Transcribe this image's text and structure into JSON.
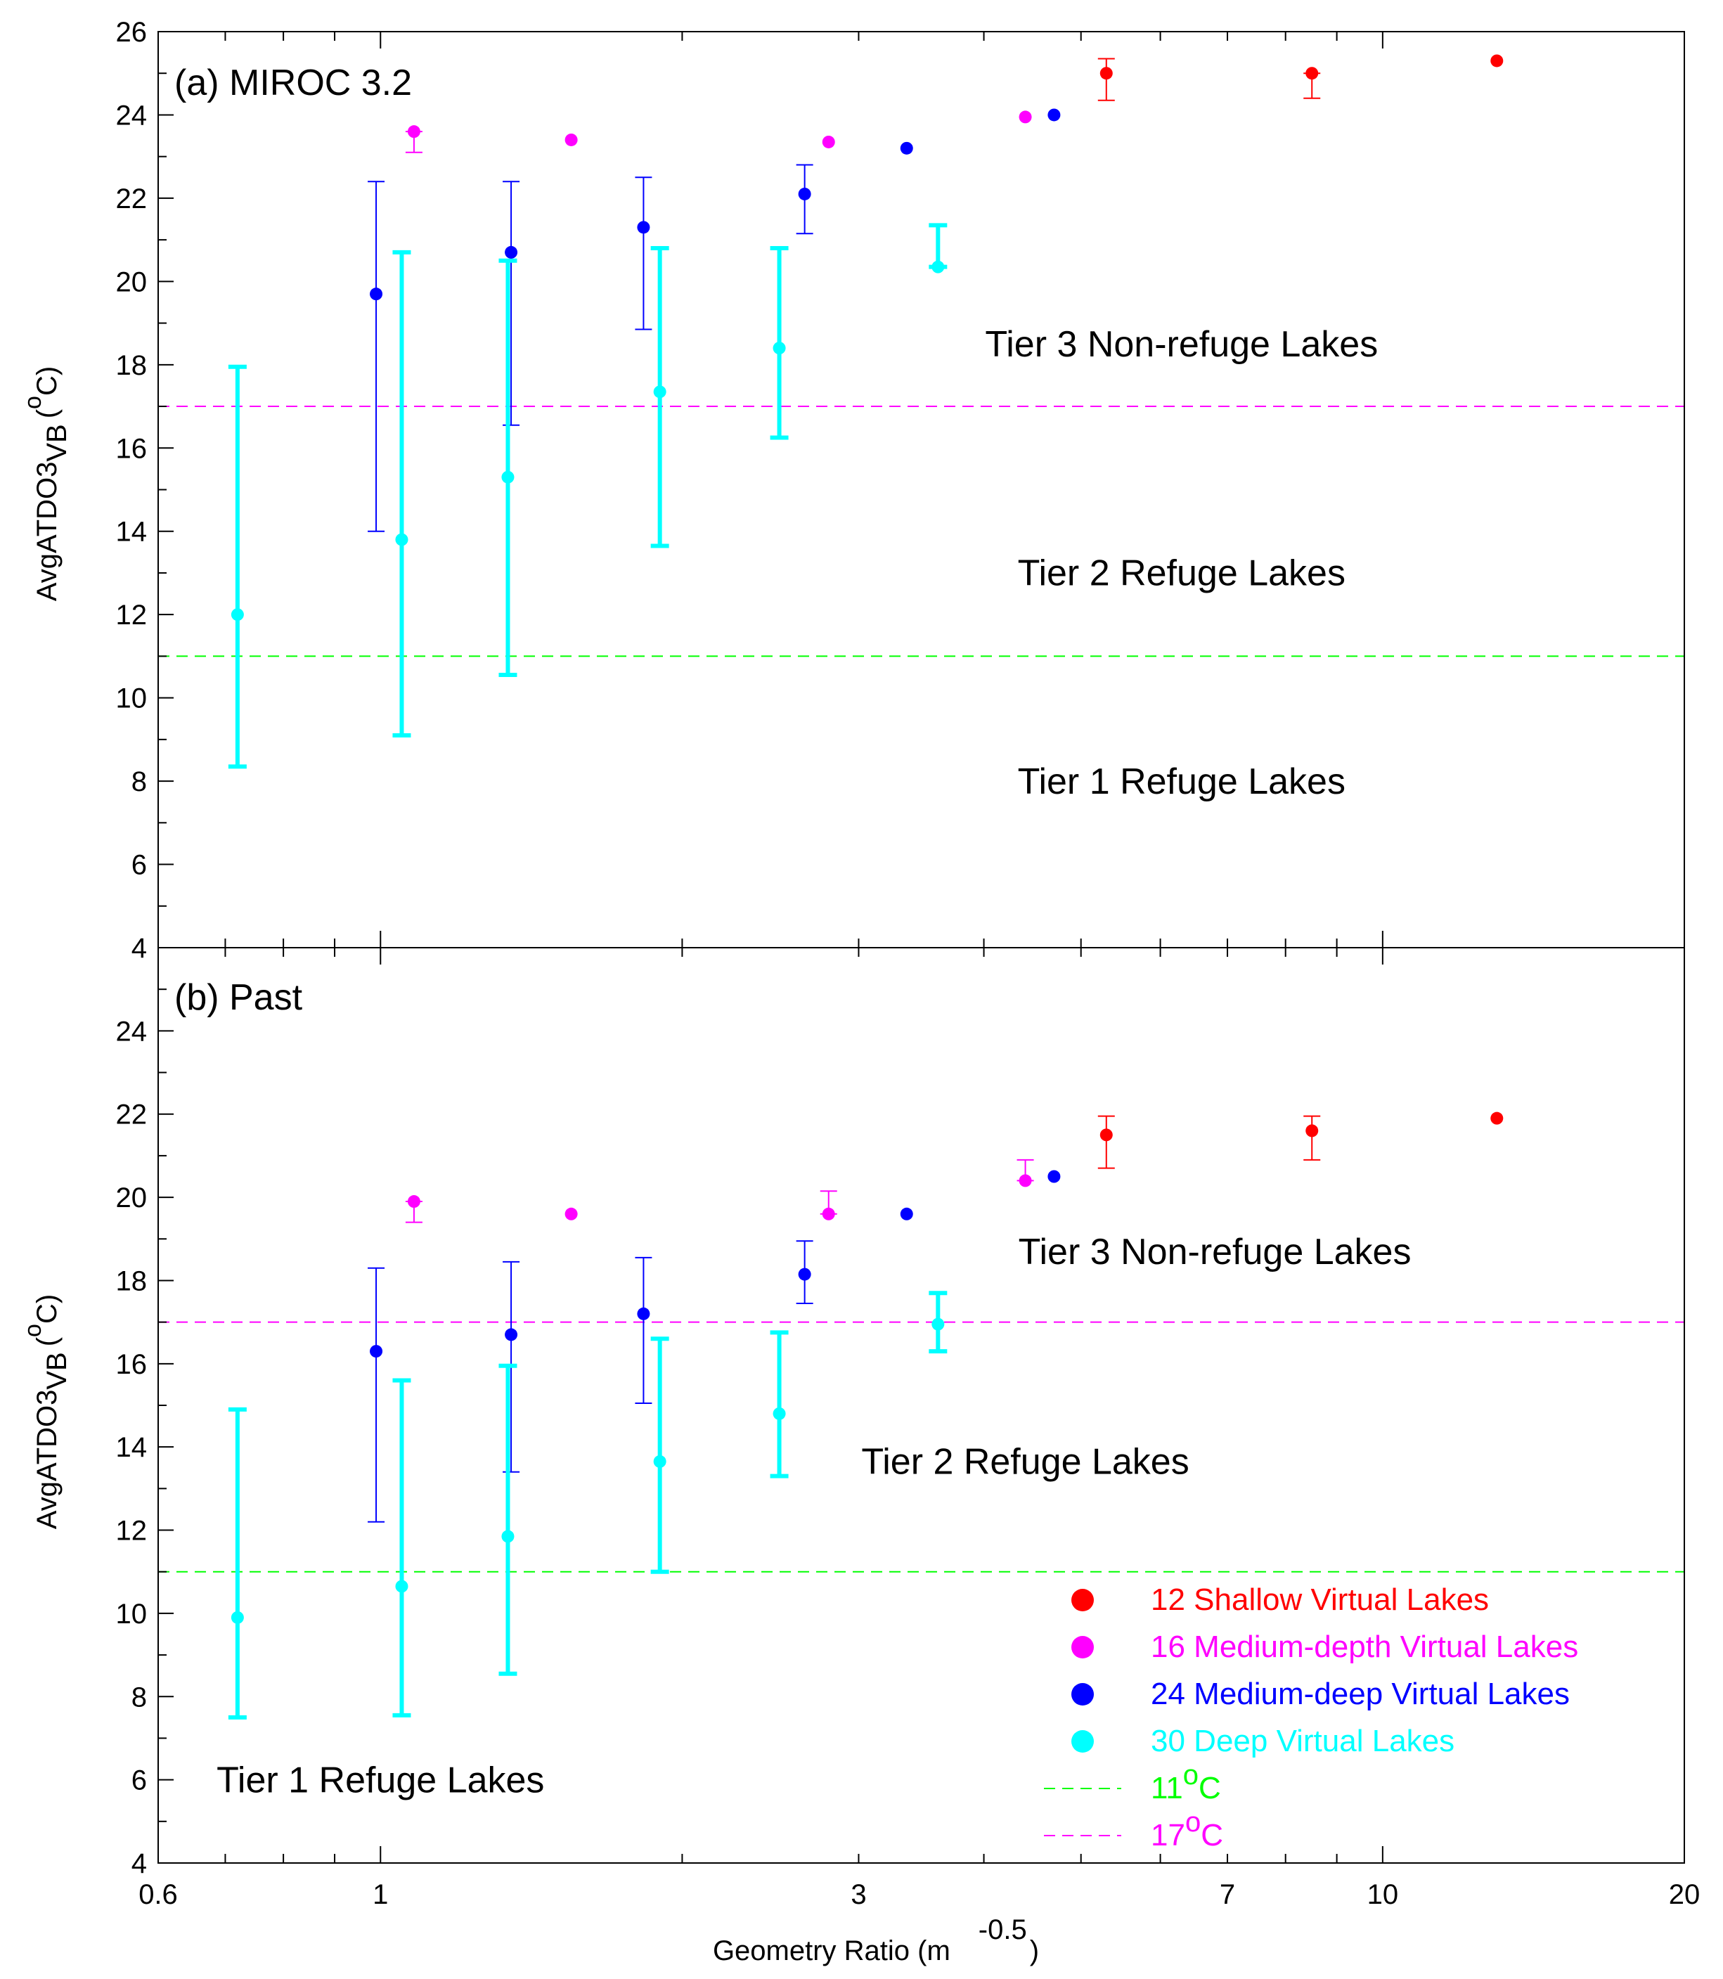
{
  "colors": {
    "shallow": "#ff0000",
    "medium_depth": "#ff00ff",
    "medium_deep": "#0000ff",
    "deep": "#00ffff",
    "line_11": "#00ff00",
    "line_17": "#ff00ff",
    "axis": "#000000"
  },
  "chart_data": [
    {
      "type": "scatter",
      "panel_label": "(a) MIROC 3.2",
      "xscale": "log",
      "xlim": [
        0.6,
        20
      ],
      "ylim": [
        4,
        26
      ],
      "y_ticks": [
        4,
        6,
        8,
        10,
        12,
        14,
        16,
        18,
        20,
        22,
        24,
        26
      ],
      "ylabel": "AvgATDO3",
      "ylabel_sub": "VB",
      "ylabel_paren_open": "(",
      "ylabel_sup": "o",
      "ylabel_unit": "C)",
      "threshold_lines": [
        {
          "name": "11oC",
          "y": 11,
          "color_key": "line_11"
        },
        {
          "name": "17oC",
          "y": 17,
          "color_key": "line_17"
        }
      ],
      "region_labels": [
        {
          "text": "Tier 3 Non-refuge Lakes",
          "x": 6.3,
          "y": 18.2
        },
        {
          "text": "Tier 2 Refuge Lakes",
          "x": 6.3,
          "y": 12.7
        },
        {
          "text": "Tier 1 Refuge Lakes",
          "x": 6.3,
          "y": 7.7
        }
      ],
      "series": [
        {
          "name": "12 Shallow Virtual Lakes",
          "color_key": "shallow",
          "width": 2,
          "points": [
            {
              "x": 5.3,
              "y": 25.0,
              "low": 24.35,
              "high": 25.35
            },
            {
              "x": 8.5,
              "y": 25.0,
              "low": 24.4,
              "high": 25.0
            },
            {
              "x": 13.0,
              "y": 25.3,
              "low": 25.3,
              "high": 25.3
            }
          ]
        },
        {
          "name": "16 Medium-depth Virtual Lakes",
          "color_key": "medium_depth",
          "width": 2,
          "points": [
            {
              "x": 1.08,
              "y": 23.6,
              "low": 23.1,
              "high": 23.6
            },
            {
              "x": 1.55,
              "y": 23.4,
              "low": 23.4,
              "high": 23.4
            },
            {
              "x": 2.8,
              "y": 23.35,
              "low": 23.35,
              "high": 23.35
            },
            {
              "x": 4.4,
              "y": 23.95,
              "low": 23.95,
              "high": 23.95
            }
          ]
        },
        {
          "name": "24 Medium-deep Virtual Lakes",
          "color_key": "medium_deep",
          "width": 2,
          "points": [
            {
              "x": 0.99,
              "y": 19.7,
              "low": 14.0,
              "high": 22.4
            },
            {
              "x": 1.35,
              "y": 20.7,
              "low": 16.55,
              "high": 22.4
            },
            {
              "x": 1.83,
              "y": 21.3,
              "low": 18.85,
              "high": 22.5
            },
            {
              "x": 2.65,
              "y": 22.1,
              "low": 21.15,
              "high": 22.8
            },
            {
              "x": 3.35,
              "y": 23.2,
              "low": 23.2,
              "high": 23.2
            },
            {
              "x": 4.7,
              "y": 24.0,
              "low": 24.0,
              "high": 24.0
            }
          ]
        },
        {
          "name": "30 Deep Virtual Lakes",
          "color_key": "deep",
          "width": 6,
          "points": [
            {
              "x": 0.72,
              "y": 12.0,
              "low": 8.35,
              "high": 17.95
            },
            {
              "x": 1.05,
              "y": 13.8,
              "low": 9.1,
              "high": 20.7
            },
            {
              "x": 1.34,
              "y": 15.3,
              "low": 10.55,
              "high": 20.5
            },
            {
              "x": 1.9,
              "y": 17.35,
              "low": 13.65,
              "high": 20.8
            },
            {
              "x": 2.5,
              "y": 18.4,
              "low": 16.25,
              "high": 20.8
            },
            {
              "x": 3.6,
              "y": 20.35,
              "low": 20.35,
              "high": 21.35
            }
          ]
        }
      ]
    },
    {
      "type": "scatter",
      "panel_label": "(b) Past",
      "xscale": "log",
      "xlim": [
        0.6,
        20
      ],
      "x_ticks": [
        0.6,
        1,
        3,
        7,
        10,
        20
      ],
      "xlabel_pre": "Geometry Ratio (m",
      "xlabel_sup": "-0.5",
      "xlabel_post": ")",
      "ylim": [
        4,
        26
      ],
      "y_ticks": [
        4,
        6,
        8,
        10,
        12,
        14,
        16,
        18,
        20,
        22,
        24
      ],
      "ylabel": "AvgATDO3",
      "ylabel_sub": "VB",
      "ylabel_paren_open": "(",
      "ylabel_sup": "o",
      "ylabel_unit": "C)",
      "threshold_lines": [
        {
          "name": "11oC",
          "y": 11,
          "color_key": "line_11"
        },
        {
          "name": "17oC",
          "y": 17,
          "color_key": "line_17"
        }
      ],
      "region_labels": [
        {
          "text": "Tier 3 Non-refuge Lakes",
          "x": 6.8,
          "y": 18.4
        },
        {
          "text": "Tier 2 Refuge Lakes",
          "x": 4.4,
          "y": 13.35
        },
        {
          "text": "Tier 1 Refuge Lakes",
          "x": 1.0,
          "y": 5.7
        }
      ],
      "series": [
        {
          "name": "12 Shallow Virtual Lakes",
          "color_key": "shallow",
          "width": 2,
          "points": [
            {
              "x": 5.3,
              "y": 21.5,
              "low": 20.7,
              "high": 21.95
            },
            {
              "x": 8.5,
              "y": 21.6,
              "low": 20.9,
              "high": 21.95
            },
            {
              "x": 13.0,
              "y": 21.9,
              "low": 21.9,
              "high": 21.9
            }
          ]
        },
        {
          "name": "16 Medium-depth Virtual Lakes",
          "color_key": "medium_depth",
          "width": 2,
          "points": [
            {
              "x": 1.08,
              "y": 19.9,
              "low": 19.4,
              "high": 19.9
            },
            {
              "x": 1.55,
              "y": 19.6,
              "low": 19.6,
              "high": 19.6
            },
            {
              "x": 2.8,
              "y": 19.6,
              "low": 19.6,
              "high": 20.15
            },
            {
              "x": 4.4,
              "y": 20.4,
              "low": 20.4,
              "high": 20.9
            }
          ]
        },
        {
          "name": "24 Medium-deep Virtual Lakes",
          "color_key": "medium_deep",
          "width": 2,
          "points": [
            {
              "x": 0.99,
              "y": 16.3,
              "low": 12.2,
              "high": 18.3
            },
            {
              "x": 1.35,
              "y": 16.7,
              "low": 13.4,
              "high": 18.45
            },
            {
              "x": 1.83,
              "y": 17.2,
              "low": 15.05,
              "high": 18.55
            },
            {
              "x": 2.65,
              "y": 18.15,
              "low": 17.45,
              "high": 18.95
            },
            {
              "x": 3.35,
              "y": 19.6,
              "low": 19.6,
              "high": 19.6
            },
            {
              "x": 4.7,
              "y": 20.5,
              "low": 20.5,
              "high": 20.5
            }
          ]
        },
        {
          "name": "30 Deep Virtual Lakes",
          "color_key": "deep",
          "width": 6,
          "points": [
            {
              "x": 0.72,
              "y": 9.9,
              "low": 7.5,
              "high": 14.9
            },
            {
              "x": 1.05,
              "y": 10.65,
              "low": 7.55,
              "high": 15.6
            },
            {
              "x": 1.34,
              "y": 11.85,
              "low": 8.55,
              "high": 15.95
            },
            {
              "x": 1.9,
              "y": 13.65,
              "low": 11.0,
              "high": 16.6
            },
            {
              "x": 2.5,
              "y": 14.8,
              "low": 13.3,
              "high": 16.75
            },
            {
              "x": 3.6,
              "y": 16.95,
              "low": 16.3,
              "high": 17.7
            }
          ]
        }
      ]
    }
  ],
  "legend": {
    "placement": "bottom-right",
    "items": [
      {
        "label": "12 Shallow Virtual Lakes",
        "kind": "dot",
        "color_key": "shallow"
      },
      {
        "label": "16 Medium-depth Virtual Lakes",
        "kind": "dot",
        "color_key": "medium_depth"
      },
      {
        "label": "24 Medium-deep Virtual Lakes",
        "kind": "dot",
        "color_key": "medium_deep"
      },
      {
        "label": "30 Deep Virtual Lakes",
        "kind": "dot",
        "color_key": "deep"
      },
      {
        "label": "11",
        "sup": "o",
        "suffix": "C",
        "kind": "line",
        "color_key": "line_11"
      },
      {
        "label": "17",
        "sup": "o",
        "suffix": "C",
        "kind": "line",
        "color_key": "line_17"
      }
    ]
  }
}
